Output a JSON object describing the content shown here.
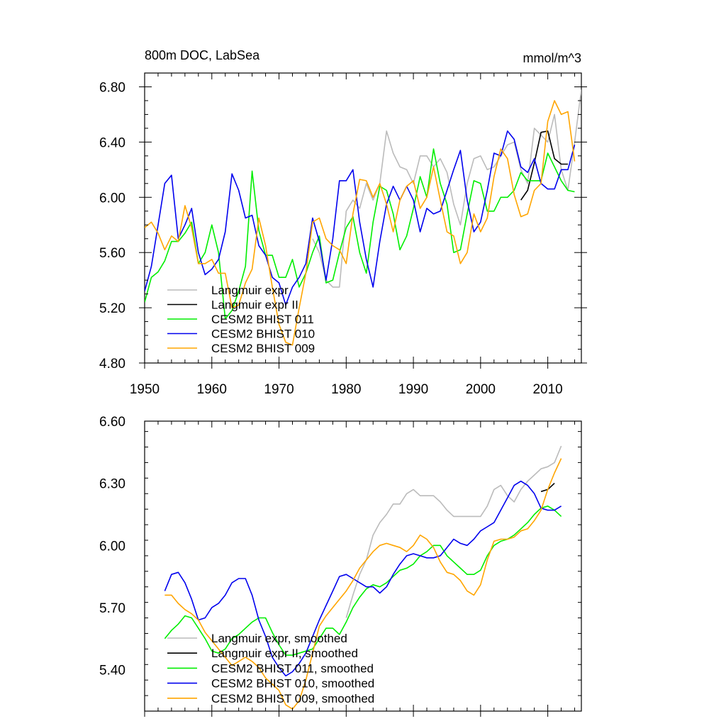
{
  "chart_data": [
    {
      "type": "line",
      "title_left": "800m DOC, LabSea",
      "title_right": "mmol/m^3",
      "xlabel": "",
      "ylabel": "",
      "xlim": [
        1950,
        2015
      ],
      "ylim": [
        4.8,
        6.9
      ],
      "xticks": [
        1950,
        1960,
        1970,
        1980,
        1990,
        2000,
        2010
      ],
      "xtick_labels": [
        "1950",
        "1960",
        "1970",
        "1980",
        "1990",
        "2000",
        "2010"
      ],
      "yticks": [
        4.8,
        5.2,
        5.6,
        6.0,
        6.4,
        6.8
      ],
      "ytick_labels": [
        "4.80",
        "5.20",
        "5.60",
        "6.00",
        "6.40",
        "6.80"
      ],
      "legend_position": "bottom-left",
      "series": [
        {
          "name": "Langmuir expr",
          "color": "#bbbbbb",
          "x": [
            1975,
            1976,
            1977,
            1978,
            1979,
            1980,
            1981,
            1982,
            1983,
            1984,
            1985,
            1986,
            1987,
            1988,
            1989,
            1990,
            1991,
            1992,
            1993,
            1994,
            1995,
            1996,
            1997,
            1998,
            1999,
            2000,
            2001,
            2002,
            2003,
            2004,
            2005,
            2006,
            2007,
            2008,
            2009,
            2010,
            2011,
            2012,
            2013,
            2014,
            2015
          ],
          "y": [
            5.7,
            5.6,
            5.4,
            5.35,
            5.35,
            5.9,
            5.98,
            5.92,
            6.1,
            5.98,
            6.1,
            6.48,
            6.32,
            6.22,
            6.2,
            6.1,
            6.3,
            6.3,
            6.22,
            6.28,
            6.18,
            5.95,
            5.8,
            6.1,
            6.28,
            6.3,
            6.2,
            6.22,
            6.3,
            6.38,
            6.4,
            6.2,
            6.1,
            6.5,
            6.45,
            6.4,
            6.6,
            6.2,
            6.05,
            6.4,
            6.78
          ]
        },
        {
          "name": "Langmuir expr II",
          "color": "#000000",
          "x": [
            2006,
            2007,
            2008,
            2009,
            2010,
            2011,
            2012,
            2013
          ],
          "y": [
            5.98,
            6.05,
            6.25,
            6.47,
            6.48,
            6.28,
            6.24,
            6.24
          ]
        },
        {
          "name": "CESM2 BHIST 011",
          "color": "#00ee00",
          "x": [
            1950,
            1951,
            1952,
            1953,
            1954,
            1955,
            1956,
            1957,
            1958,
            1959,
            1960,
            1961,
            1962,
            1963,
            1964,
            1965,
            1966,
            1967,
            1968,
            1969,
            1970,
            1971,
            1972,
            1973,
            1974,
            1975,
            1976,
            1977,
            1978,
            1979,
            1980,
            1981,
            1982,
            1983,
            1984,
            1985,
            1986,
            1987,
            1988,
            1989,
            1990,
            1991,
            1992,
            1993,
            1994,
            1995,
            1996,
            1997,
            1998,
            1999,
            2000,
            2001,
            2002,
            2003,
            2004,
            2005,
            2006,
            2007,
            2008,
            2009,
            2010,
            2011,
            2012,
            2013,
            2014
          ],
          "y": [
            5.24,
            5.42,
            5.46,
            5.54,
            5.68,
            5.68,
            5.74,
            5.82,
            5.52,
            5.6,
            5.8,
            5.6,
            5.12,
            5.18,
            5.32,
            5.5,
            6.19,
            5.76,
            5.58,
            5.58,
            5.42,
            5.42,
            5.55,
            5.35,
            5.45,
            5.6,
            5.72,
            5.38,
            5.4,
            5.6,
            5.78,
            5.86,
            5.6,
            5.45,
            5.82,
            6.08,
            6.05,
            5.88,
            5.62,
            5.72,
            5.92,
            6.15,
            6.0,
            6.35,
            6.1,
            5.95,
            5.6,
            5.62,
            5.88,
            6.12,
            6.1,
            5.9,
            5.9,
            6.0,
            6.0,
            6.05,
            6.18,
            6.12,
            6.12,
            6.12,
            6.32,
            6.22,
            6.12,
            6.05,
            6.04
          ]
        },
        {
          "name": "CESM2 BHIST 010",
          "color": "#0000ee",
          "x": [
            1950,
            1951,
            1952,
            1953,
            1954,
            1955,
            1956,
            1957,
            1958,
            1959,
            1960,
            1961,
            1962,
            1963,
            1964,
            1965,
            1966,
            1967,
            1968,
            1969,
            1970,
            1971,
            1972,
            1973,
            1974,
            1975,
            1976,
            1977,
            1978,
            1979,
            1980,
            1981,
            1982,
            1983,
            1984,
            1985,
            1986,
            1987,
            1988,
            1989,
            1990,
            1991,
            1992,
            1993,
            1994,
            1995,
            1996,
            1997,
            1998,
            1999,
            2000,
            2001,
            2002,
            2003,
            2004,
            2005,
            2006,
            2007,
            2008,
            2009,
            2010,
            2011,
            2012,
            2013,
            2014
          ],
          "y": [
            5.32,
            5.5,
            5.8,
            6.1,
            6.16,
            5.7,
            5.8,
            5.92,
            5.6,
            5.44,
            5.48,
            5.55,
            5.75,
            6.17,
            6.05,
            5.85,
            5.87,
            5.65,
            5.58,
            5.42,
            5.38,
            5.22,
            5.35,
            5.42,
            5.52,
            5.85,
            5.68,
            5.4,
            5.7,
            6.12,
            6.12,
            6.2,
            5.82,
            5.55,
            5.35,
            5.68,
            5.95,
            6.08,
            5.98,
            6.08,
            5.98,
            5.75,
            5.92,
            5.88,
            5.9,
            6.05,
            6.2,
            6.34,
            5.98,
            5.75,
            5.82,
            6.05,
            6.32,
            6.3,
            6.48,
            6.42,
            6.22,
            6.18,
            6.28,
            6.1,
            6.06,
            6.06,
            6.2,
            6.2,
            6.38
          ]
        },
        {
          "name": "CESM2 BHIST 009",
          "color": "#ffa500",
          "x": [
            1950,
            1951,
            1952,
            1953,
            1954,
            1955,
            1956,
            1957,
            1958,
            1959,
            1960,
            1961,
            1962,
            1963,
            1964,
            1965,
            1966,
            1967,
            1968,
            1969,
            1970,
            1971,
            1972,
            1973,
            1974,
            1975,
            1976,
            1977,
            1978,
            1979,
            1980,
            1981,
            1982,
            1983,
            1984,
            1985,
            1986,
            1987,
            1988,
            1989,
            1990,
            1991,
            1992,
            1993,
            1994,
            1995,
            1996,
            1997,
            1998,
            1999,
            2000,
            2001,
            2002,
            2003,
            2004,
            2005,
            2006,
            2007,
            2008,
            2009,
            2010,
            2011,
            2012,
            2013,
            2014
          ],
          "y": [
            5.78,
            5.82,
            5.74,
            5.62,
            5.72,
            5.68,
            5.94,
            5.78,
            5.52,
            5.52,
            5.55,
            5.45,
            5.45,
            5.2,
            5.22,
            5.38,
            5.48,
            5.85,
            5.65,
            5.35,
            5.08,
            4.95,
            4.93,
            5.2,
            5.45,
            5.82,
            5.85,
            5.7,
            5.65,
            5.62,
            5.52,
            5.88,
            6.13,
            6.12,
            6.0,
            6.1,
            5.95,
            5.75,
            5.98,
            6.08,
            6.12,
            5.92,
            6.0,
            6.22,
            5.98,
            5.75,
            5.72,
            5.52,
            5.6,
            5.88,
            5.75,
            5.85,
            6.15,
            6.35,
            6.28,
            6.02,
            5.86,
            5.88,
            6.05,
            6.1,
            6.55,
            6.7,
            6.6,
            6.62,
            6.26
          ]
        }
      ]
    },
    {
      "type": "line",
      "xlabel": "",
      "ylabel": "",
      "xlim": [
        1950,
        2015
      ],
      "ylim": [
        5.2,
        6.6
      ],
      "xticks": [
        1950,
        1960,
        1970,
        1980,
        1990,
        2000,
        2010
      ],
      "yticks": [
        5.4,
        5.7,
        6.0,
        6.3,
        6.6
      ],
      "ytick_labels": [
        "5.40",
        "5.70",
        "6.00",
        "6.30",
        "6.60"
      ],
      "legend_position": "bottom-left",
      "series": [
        {
          "name": "Langmuir expr, smoothed",
          "color": "#bbbbbb",
          "x": [
            1980,
            1981,
            1982,
            1983,
            1984,
            1985,
            1986,
            1987,
            1988,
            1989,
            1990,
            1991,
            1992,
            1993,
            1994,
            1995,
            1996,
            1997,
            1998,
            1999,
            2000,
            2001,
            2002,
            2003,
            2004,
            2005,
            2006,
            2007,
            2008,
            2009,
            2010,
            2011,
            2012
          ],
          "y": [
            5.65,
            5.76,
            5.86,
            5.93,
            6.05,
            6.11,
            6.15,
            6.2,
            6.2,
            6.25,
            6.27,
            6.24,
            6.24,
            6.24,
            6.21,
            6.17,
            6.14,
            6.14,
            6.14,
            6.14,
            6.14,
            6.19,
            6.27,
            6.29,
            6.24,
            6.21,
            6.27,
            6.31,
            6.34,
            6.37,
            6.38,
            6.4,
            6.48
          ]
        },
        {
          "name": "Langmuir expr II, smoothed",
          "color": "#000000",
          "x": [
            2009,
            2010,
            2011
          ],
          "y": [
            6.26,
            6.27,
            6.3
          ]
        },
        {
          "name": "CESM2 BHIST 011, smoothed",
          "color": "#00ee00",
          "x": [
            1953,
            1954,
            1955,
            1956,
            1957,
            1958,
            1959,
            1960,
            1961,
            1962,
            1963,
            1964,
            1965,
            1966,
            1967,
            1968,
            1969,
            1970,
            1971,
            1972,
            1973,
            1974,
            1975,
            1976,
            1977,
            1978,
            1979,
            1980,
            1981,
            1982,
            1983,
            1984,
            1985,
            1986,
            1987,
            1988,
            1989,
            1990,
            1991,
            1992,
            1993,
            1994,
            1995,
            1996,
            1997,
            1998,
            1999,
            2000,
            2001,
            2002,
            2003,
            2004,
            2005,
            2006,
            2007,
            2008,
            2009,
            2010,
            2011,
            2012
          ],
          "y": [
            5.55,
            5.59,
            5.62,
            5.66,
            5.65,
            5.6,
            5.55,
            5.49,
            5.48,
            5.5,
            5.55,
            5.57,
            5.6,
            5.63,
            5.65,
            5.65,
            5.58,
            5.52,
            5.47,
            5.47,
            5.48,
            5.49,
            5.5,
            5.55,
            5.6,
            5.6,
            5.57,
            5.63,
            5.7,
            5.75,
            5.79,
            5.81,
            5.8,
            5.82,
            5.85,
            5.88,
            5.89,
            5.91,
            5.95,
            5.97,
            6.0,
            6.0,
            5.95,
            5.92,
            5.89,
            5.86,
            5.86,
            5.88,
            5.95,
            6.0,
            6.02,
            6.03,
            6.05,
            6.08,
            6.11,
            6.15,
            6.18,
            6.19,
            6.17,
            6.14
          ]
        },
        {
          "name": "CESM2 BHIST 010, smoothed",
          "color": "#0000ee",
          "x": [
            1953,
            1954,
            1955,
            1956,
            1957,
            1958,
            1959,
            1960,
            1961,
            1962,
            1963,
            1964,
            1965,
            1966,
            1967,
            1968,
            1969,
            1970,
            1971,
            1972,
            1973,
            1974,
            1975,
            1976,
            1977,
            1978,
            1979,
            1980,
            1981,
            1982,
            1983,
            1984,
            1985,
            1986,
            1987,
            1988,
            1989,
            1990,
            1991,
            1992,
            1993,
            1994,
            1995,
            1996,
            1997,
            1998,
            1999,
            2000,
            2001,
            2002,
            2003,
            2004,
            2005,
            2006,
            2007,
            2008,
            2009,
            2010,
            2011,
            2012
          ],
          "y": [
            5.78,
            5.86,
            5.87,
            5.82,
            5.74,
            5.64,
            5.65,
            5.7,
            5.72,
            5.76,
            5.82,
            5.84,
            5.84,
            5.76,
            5.64,
            5.56,
            5.46,
            5.41,
            5.37,
            5.39,
            5.43,
            5.48,
            5.56,
            5.64,
            5.71,
            5.78,
            5.85,
            5.86,
            5.84,
            5.82,
            5.8,
            5.8,
            5.77,
            5.8,
            5.86,
            5.91,
            5.95,
            5.96,
            5.95,
            5.94,
            5.94,
            5.95,
            5.99,
            6.03,
            6.01,
            6.0,
            6.03,
            6.07,
            6.09,
            6.11,
            6.17,
            6.23,
            6.29,
            6.31,
            6.29,
            6.25,
            6.18,
            6.17,
            6.17,
            6.19
          ]
        },
        {
          "name": "CESM2 BHIST 009, smoothed",
          "color": "#ffa500",
          "x": [
            1953,
            1954,
            1955,
            1956,
            1957,
            1958,
            1959,
            1960,
            1961,
            1962,
            1963,
            1964,
            1965,
            1966,
            1967,
            1968,
            1969,
            1970,
            1971,
            1972,
            1973,
            1974,
            1975,
            1976,
            1977,
            1978,
            1979,
            1980,
            1981,
            1982,
            1983,
            1984,
            1985,
            1986,
            1987,
            1988,
            1989,
            1990,
            1991,
            1992,
            1993,
            1994,
            1995,
            1996,
            1997,
            1998,
            1999,
            2000,
            2001,
            2002,
            2003,
            2004,
            2005,
            2006,
            2007,
            2008,
            2009,
            2010,
            2011,
            2012
          ],
          "y": [
            5.76,
            5.76,
            5.72,
            5.69,
            5.67,
            5.64,
            5.58,
            5.54,
            5.5,
            5.46,
            5.42,
            5.44,
            5.46,
            5.44,
            5.41,
            5.36,
            5.33,
            5.3,
            5.23,
            5.21,
            5.25,
            5.35,
            5.48,
            5.61,
            5.66,
            5.7,
            5.74,
            5.78,
            5.83,
            5.89,
            5.93,
            5.97,
            6.0,
            6.01,
            6.0,
            5.99,
            5.97,
            6.0,
            6.05,
            6.03,
            5.99,
            5.92,
            5.87,
            5.86,
            5.83,
            5.78,
            5.76,
            5.81,
            5.93,
            6.02,
            6.03,
            6.03,
            6.04,
            6.07,
            6.08,
            6.12,
            6.17,
            6.27,
            6.35,
            6.42
          ]
        }
      ]
    }
  ]
}
